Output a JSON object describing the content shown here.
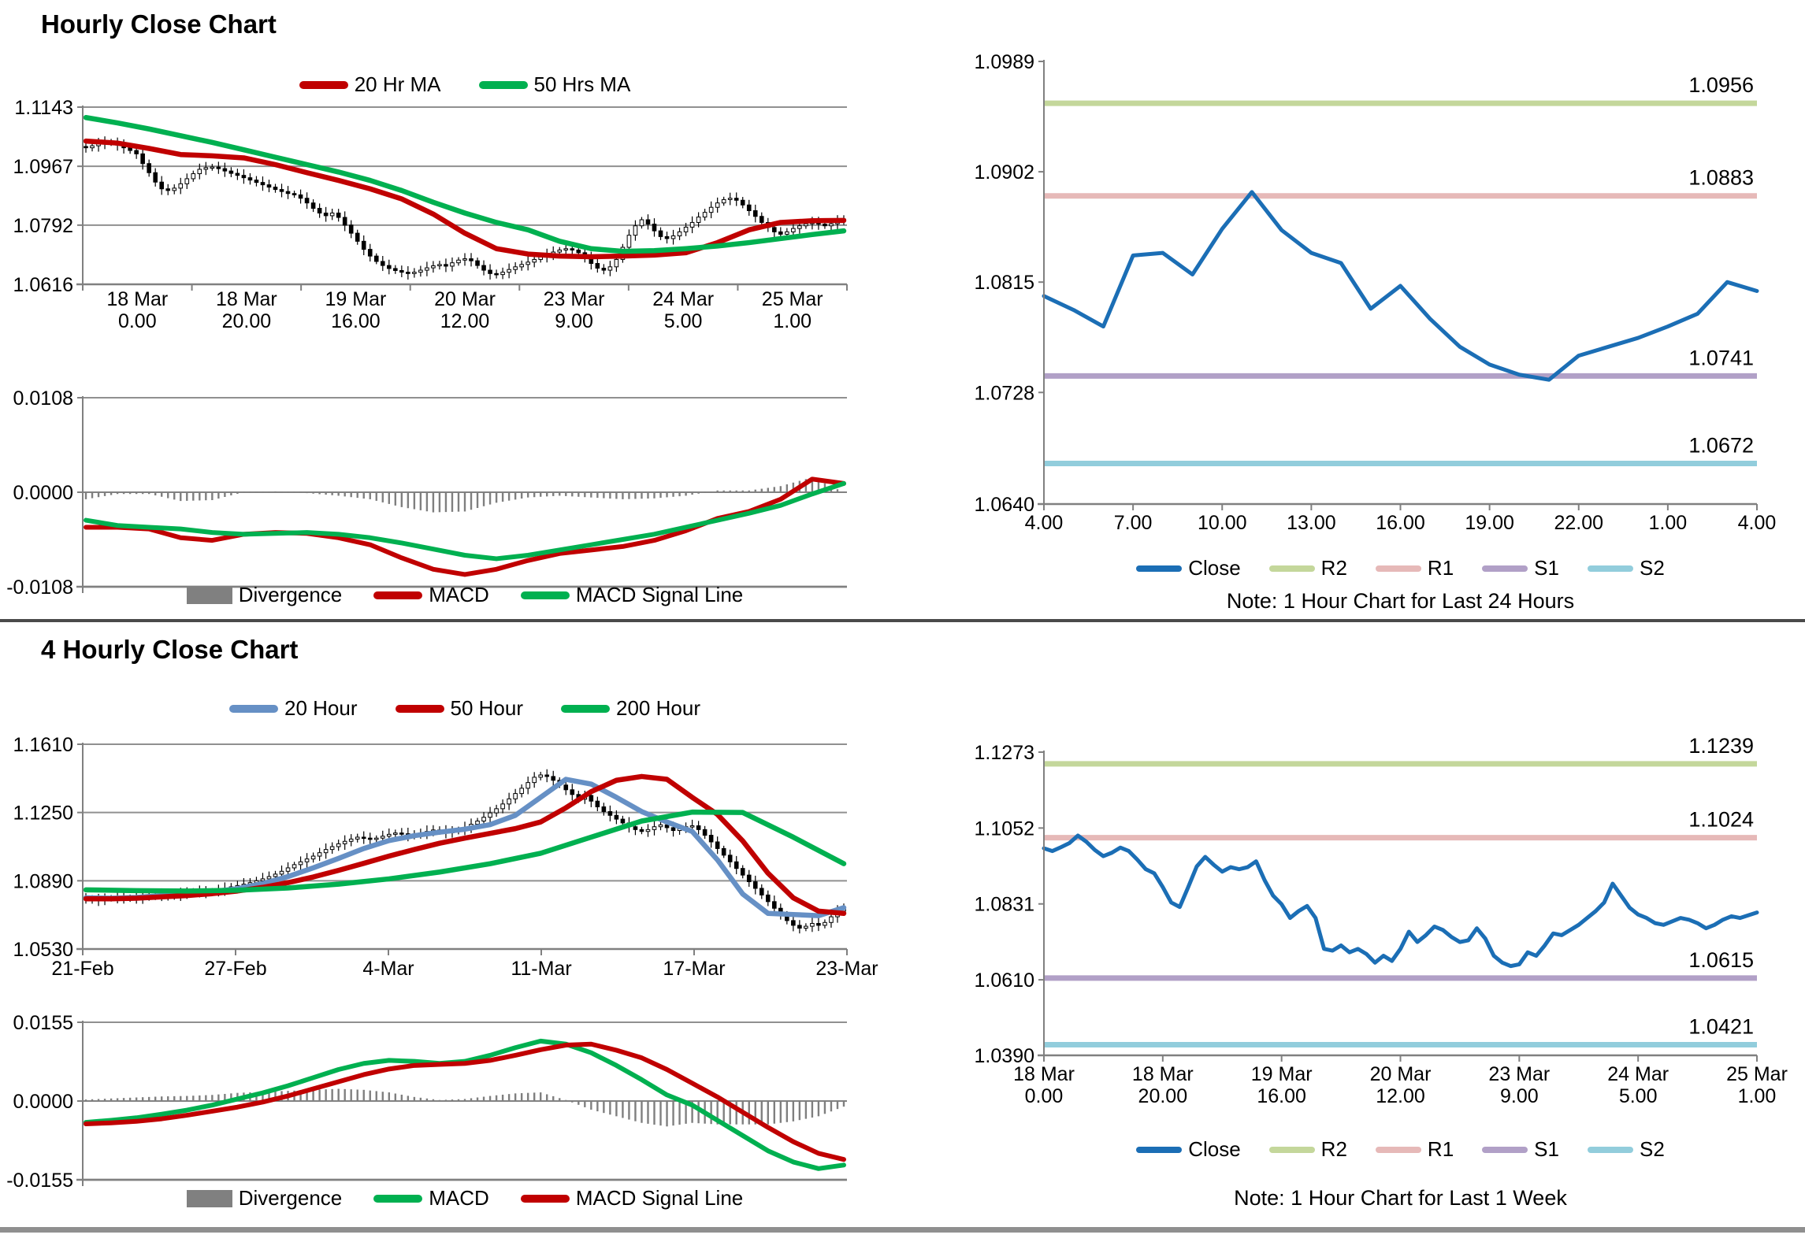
{
  "page": {
    "section1_title": "Hourly Close Chart",
    "section2_title": "4 Hourly Close Chart"
  },
  "colors": {
    "ma_red": "#C00000",
    "ma_green": "#00B050",
    "ma_blue": "#6690C5",
    "close_blue": "#1B6EB5",
    "r2_green": "#C4D79B",
    "r1_pink": "#E6B9B8",
    "s1_purple": "#B1A0C7",
    "s2_cyan": "#92CDDC",
    "divergence_gray": "#808080",
    "grid_gray": "#909090"
  },
  "chart_data": [
    {
      "id": "hourly-price",
      "type": "candlestick",
      "title": "Hourly Close Chart",
      "y_ticks": [
        "1.1143",
        "1.0967",
        "1.0792",
        "1.0616"
      ],
      "x_labels": [
        [
          "18 Mar",
          "0.00"
        ],
        [
          "18 Mar",
          "20.00"
        ],
        [
          "19 Mar",
          "16.00"
        ],
        [
          "20 Mar",
          "12.00"
        ],
        [
          "23 Mar",
          "9.00"
        ],
        [
          "24 Mar",
          "5.00"
        ],
        [
          "25 Mar",
          "1.00"
        ]
      ],
      "close": [
        1.1022,
        1.1028,
        1.1034,
        1.104,
        1.1036,
        1.103,
        1.1022,
        1.1014,
        1.1004,
        1.0975,
        1.0948,
        1.092,
        1.09,
        1.0895,
        1.0902,
        1.0915,
        1.093,
        1.0945,
        1.0958,
        1.0963,
        1.0965,
        1.096,
        1.0953,
        1.0946,
        1.094,
        1.0933,
        1.0926,
        1.0919,
        1.0912,
        1.0905,
        1.0898,
        1.0892,
        1.0886,
        1.0882,
        1.0872,
        1.0858,
        1.0842,
        1.0828,
        1.082,
        1.0828,
        1.0815,
        1.0792,
        1.0768,
        1.0744,
        1.072,
        1.07,
        1.0684,
        1.0672,
        1.0663,
        1.0657,
        1.0652,
        1.0648,
        1.0652,
        1.0658,
        1.0665,
        1.0671,
        1.0675,
        1.067,
        1.068,
        1.0688,
        1.0692,
        1.0686,
        1.0672,
        1.0658,
        1.0648,
        1.0645,
        1.0652,
        1.066,
        1.0668,
        1.0675,
        1.0682,
        1.069,
        1.0698,
        1.0705,
        1.0712,
        1.0718,
        1.0722,
        1.0718,
        1.071,
        1.0695,
        1.0678,
        1.0664,
        1.0658,
        1.0668,
        1.069,
        1.0726,
        1.0762,
        1.079,
        1.0808,
        1.0795,
        1.0775,
        1.0758,
        1.0752,
        1.076,
        1.0772,
        1.0786,
        1.08,
        1.0816,
        1.083,
        1.0845,
        1.0858,
        1.0868,
        1.0872,
        1.0866,
        1.0852,
        1.0835,
        1.0818,
        1.08,
        1.0785,
        1.0772,
        1.0765,
        1.0772,
        1.0782,
        1.079,
        1.0796,
        1.08,
        1.0795,
        1.079,
        1.0796,
        1.0804,
        1.081
      ],
      "series": [
        {
          "name": "20 Hr MA",
          "color": "#C00000",
          "step": 5,
          "values": [
            1.1042,
            1.1036,
            1.102,
            1.1002,
            1.0998,
            1.0992,
            1.0972,
            1.0948,
            1.0925,
            1.09,
            1.087,
            1.0825,
            1.0768,
            1.0722,
            1.0706,
            1.07,
            1.0698,
            1.07,
            1.0703,
            1.071,
            1.074,
            1.0778,
            1.08,
            1.0805,
            1.0806
          ]
        },
        {
          "name": "50 Hrs MA",
          "color": "#00B050",
          "step": 5,
          "values": [
            1.1112,
            1.1096,
            1.1078,
            1.1058,
            1.1038,
            1.1016,
            1.0994,
            1.0972,
            1.095,
            1.0925,
            1.0895,
            1.086,
            1.0828,
            1.08,
            1.0778,
            1.0744,
            1.0722,
            1.0714,
            1.0716,
            1.0722,
            1.073,
            1.074,
            1.0752,
            1.0764,
            1.0775
          ]
        }
      ]
    },
    {
      "id": "hourly-macd",
      "type": "macd",
      "y_ticks": [
        "0.0108",
        "0.0000",
        "-0.0108"
      ],
      "legend": [
        {
          "label": "Divergence",
          "color": "#808080"
        },
        {
          "label": "MACD",
          "color": "#C00000"
        },
        {
          "label": "MACD Signal Line",
          "color": "#00B050"
        }
      ],
      "bars": 121,
      "macd": {
        "color": "#C00000",
        "step": 5,
        "values": [
          -0.004,
          -0.004,
          -0.0042,
          -0.0052,
          -0.0055,
          -0.0048,
          -0.0046,
          -0.0047,
          -0.0052,
          -0.006,
          -0.0075,
          -0.0088,
          -0.0094,
          -0.0088,
          -0.0078,
          -0.007,
          -0.0066,
          -0.0062,
          -0.0055,
          -0.0044,
          -0.003,
          -0.0022,
          -0.0008,
          0.0015,
          0.001
        ]
      },
      "signal": {
        "color": "#00B050",
        "step": 5,
        "values": [
          -0.0032,
          -0.0038,
          -0.004,
          -0.0042,
          -0.0046,
          -0.0048,
          -0.0047,
          -0.0046,
          -0.0048,
          -0.0052,
          -0.0058,
          -0.0065,
          -0.0072,
          -0.0076,
          -0.0072,
          -0.0066,
          -0.006,
          -0.0054,
          -0.0048,
          -0.004,
          -0.0032,
          -0.0024,
          -0.0015,
          -0.0002,
          0.001
        ]
      }
    },
    {
      "id": "hourly-pivot",
      "type": "line",
      "y_ticks": [
        "1.0989",
        "1.0902",
        "1.0815",
        "1.0728",
        "1.0640"
      ],
      "x_labels": [
        "4.00",
        "7.00",
        "10.00",
        "13.00",
        "16.00",
        "19.00",
        "22.00",
        "1.00",
        "4.00"
      ],
      "close_color": "#1B6EB5",
      "close": [
        1.0804,
        1.0793,
        1.078,
        1.0836,
        1.0838,
        1.0821,
        1.0857,
        1.0886,
        1.0856,
        1.0838,
        1.083,
        1.0794,
        1.0812,
        1.0786,
        1.0764,
        1.075,
        1.0742,
        1.0738,
        1.0757,
        1.0764,
        1.0771,
        1.078,
        1.079,
        1.0815,
        1.0808
      ],
      "pivots": [
        {
          "name": "R2",
          "label": "1.0956",
          "value": 1.0956,
          "color": "#C4D79B"
        },
        {
          "name": "R1",
          "label": "1.0883",
          "value": 1.0883,
          "color": "#E6B9B8"
        },
        {
          "name": "S1",
          "label": "1.0741",
          "value": 1.0741,
          "color": "#B1A0C7"
        },
        {
          "name": "S2",
          "label": "1.0672",
          "value": 1.0672,
          "color": "#92CDDC"
        }
      ],
      "legend": [
        {
          "label": "Close",
          "color": "#1B6EB5"
        },
        {
          "label": "R2",
          "color": "#C4D79B"
        },
        {
          "label": "R1",
          "color": "#E6B9B8"
        },
        {
          "label": "S1",
          "color": "#B1A0C7"
        },
        {
          "label": "S2",
          "color": "#92CDDC"
        }
      ],
      "note": "Note: 1 Hour Chart for Last 24 Hours"
    },
    {
      "id": "fourhour-price",
      "type": "candlestick",
      "title": "4 Hourly Close Chart",
      "y_ticks": [
        "1.1610",
        "1.1250",
        "1.0890",
        "1.0530"
      ],
      "x_labels": [
        "21-Feb",
        "27-Feb",
        "4-Mar",
        "11-Mar",
        "17-Mar",
        "23-Mar"
      ],
      "close": [
        1.0795,
        1.0788,
        1.079,
        1.0795,
        1.08,
        1.0805,
        1.08,
        1.0796,
        1.08,
        1.0806,
        1.0812,
        1.0818,
        1.0815,
        1.081,
        1.0815,
        1.0822,
        1.0828,
        1.0835,
        1.0832,
        1.0828,
        1.0835,
        1.0842,
        1.085,
        1.0858,
        1.0865,
        1.0872,
        1.088,
        1.089,
        1.09,
        1.0912,
        1.0925,
        1.094,
        1.0958,
        1.0975,
        1.099,
        1.1005,
        1.102,
        1.1038,
        1.1055,
        1.107,
        1.1085,
        1.1098,
        1.111,
        1.112,
        1.1115,
        1.1108,
        1.1115,
        1.1125,
        1.1135,
        1.1142,
        1.1138,
        1.113,
        1.1135,
        1.1142,
        1.115,
        1.1158,
        1.1152,
        1.1145,
        1.115,
        1.116,
        1.1172,
        1.1188,
        1.1205,
        1.1225,
        1.1248,
        1.127,
        1.1295,
        1.1322,
        1.135,
        1.1378,
        1.1408,
        1.1436,
        1.1448,
        1.144,
        1.142,
        1.1395,
        1.137,
        1.1345,
        1.132,
        1.134,
        1.131,
        1.128,
        1.1255,
        1.1235,
        1.1215,
        1.1195,
        1.1175,
        1.116,
        1.115,
        1.116,
        1.1175,
        1.1185,
        1.117,
        1.1155,
        1.1165,
        1.1175,
        1.118,
        1.116,
        1.113,
        1.1095,
        1.106,
        1.1025,
        1.099,
        1.0955,
        1.092,
        1.0885,
        1.085,
        1.0815,
        1.078,
        1.0745,
        1.071,
        1.068,
        1.0655,
        1.064,
        1.065,
        1.0665,
        1.0655,
        1.067,
        1.07,
        1.073,
        1.075
      ],
      "series": [
        {
          "name": "20 Hour",
          "color": "#6690C5",
          "step": 4,
          "values": [
            1.08,
            1.0798,
            1.0802,
            1.0812,
            1.0822,
            1.0833,
            1.0848,
            1.0875,
            1.0912,
            1.0958,
            1.1008,
            1.106,
            1.1102,
            1.1128,
            1.1146,
            1.1162,
            1.1186,
            1.1235,
            1.133,
            1.1425,
            1.14,
            1.133,
            1.1255,
            1.12,
            1.115,
            1.1,
            1.082,
            1.0718,
            1.0712,
            1.0706,
            1.0748
          ]
        },
        {
          "name": "50 Hour",
          "color": "#C00000",
          "step": 4,
          "values": [
            1.0795,
            1.0795,
            1.0798,
            1.0805,
            1.0812,
            1.0822,
            1.0836,
            1.0855,
            1.088,
            1.091,
            1.0945,
            1.0982,
            1.102,
            1.1055,
            1.1088,
            1.1115,
            1.114,
            1.1165,
            1.12,
            1.1275,
            1.136,
            1.142,
            1.144,
            1.1425,
            1.133,
            1.124,
            1.11,
            1.093,
            1.08,
            1.073,
            1.0718
          ]
        },
        {
          "name": "200 Hour",
          "color": "#00B050",
          "step": 8,
          "values": [
            1.0842,
            1.0838,
            1.0836,
            1.084,
            1.0852,
            1.0872,
            1.09,
            1.0936,
            1.098,
            1.1035,
            1.112,
            1.1205,
            1.1252,
            1.125,
            1.112,
            1.098
          ]
        }
      ]
    },
    {
      "id": "fourhour-macd",
      "type": "macd",
      "y_ticks": [
        "0.0155",
        "0.0000",
        "-0.0155"
      ],
      "legend": [
        {
          "label": "Divergence",
          "color": "#808080"
        },
        {
          "label": "MACD",
          "color": "#00B050"
        },
        {
          "label": "MACD Signal Line",
          "color": "#C00000"
        }
      ],
      "bars": 121,
      "macd": {
        "color": "#00B050",
        "step": 4,
        "values": [
          -0.0042,
          -0.0038,
          -0.0033,
          -0.0026,
          -0.0018,
          -0.0008,
          0.0004,
          0.0016,
          0.003,
          0.0046,
          0.0062,
          0.0074,
          0.008,
          0.0078,
          0.0074,
          0.0078,
          0.009,
          0.0105,
          0.0118,
          0.0112,
          0.0095,
          0.007,
          0.0042,
          0.0012,
          -0.0008,
          -0.0038,
          -0.0068,
          -0.0098,
          -0.012,
          -0.0133,
          -0.0126
        ]
      },
      "signal": {
        "color": "#C00000",
        "step": 4,
        "values": [
          -0.0045,
          -0.0043,
          -0.004,
          -0.0035,
          -0.0028,
          -0.002,
          -0.0012,
          -0.0002,
          0.001,
          0.0024,
          0.0038,
          0.0052,
          0.0063,
          0.007,
          0.0072,
          0.0074,
          0.008,
          0.009,
          0.0101,
          0.011,
          0.0112,
          0.01,
          0.0085,
          0.0062,
          0.0035,
          0.0008,
          -0.0022,
          -0.0052,
          -0.008,
          -0.0103,
          -0.0115
        ]
      }
    },
    {
      "id": "fourhour-pivot",
      "type": "line",
      "y_ticks": [
        "1.1273",
        "1.1052",
        "1.0831",
        "1.0610",
        "1.0390"
      ],
      "x_labels": [
        [
          "18 Mar",
          "0.00"
        ],
        [
          "18 Mar",
          "20.00"
        ],
        [
          "19 Mar",
          "16.00"
        ],
        [
          "20 Mar",
          "12.00"
        ],
        [
          "23 Mar",
          "9.00"
        ],
        [
          "24 Mar",
          "5.00"
        ],
        [
          "25 Mar",
          "1.00"
        ]
      ],
      "close_color": "#1B6EB5",
      "close": [
        1.0993,
        1.0985,
        1.0996,
        1.1008,
        1.103,
        1.1012,
        1.0988,
        1.097,
        1.098,
        1.0995,
        1.0985,
        1.096,
        1.0932,
        1.092,
        1.088,
        1.0835,
        1.0822,
        1.088,
        1.094,
        1.0968,
        1.0945,
        1.0925,
        1.0938,
        1.0932,
        1.0938,
        1.0955,
        1.09,
        1.0855,
        1.083,
        1.079,
        1.081,
        1.0825,
        1.079,
        1.07,
        1.0695,
        1.071,
        1.069,
        1.07,
        1.0685,
        1.066,
        1.068,
        1.0665,
        1.07,
        1.075,
        1.072,
        1.074,
        1.0765,
        1.0755,
        1.0735,
        1.072,
        1.0725,
        1.076,
        1.073,
        1.068,
        1.066,
        1.065,
        1.0655,
        1.069,
        1.068,
        1.071,
        1.0745,
        1.074,
        1.0755,
        1.077,
        1.079,
        1.081,
        1.0835,
        1.089,
        1.0855,
        1.082,
        1.08,
        1.079,
        1.0775,
        1.077,
        1.078,
        1.079,
        1.0785,
        1.0775,
        1.076,
        1.077,
        1.0785,
        1.0795,
        1.079,
        1.0798,
        1.0806
      ],
      "pivots": [
        {
          "name": "R2",
          "label": "1.1239",
          "value": 1.1239,
          "color": "#C4D79B"
        },
        {
          "name": "R1",
          "label": "1.1024",
          "value": 1.1024,
          "color": "#E6B9B8"
        },
        {
          "name": "S1",
          "label": "1.0615",
          "value": 1.0615,
          "color": "#B1A0C7"
        },
        {
          "name": "S2",
          "label": "1.0421",
          "value": 1.0421,
          "color": "#92CDDC"
        }
      ],
      "legend": [
        {
          "label": "Close",
          "color": "#1B6EB5"
        },
        {
          "label": "R2",
          "color": "#C4D79B"
        },
        {
          "label": "R1",
          "color": "#E6B9B8"
        },
        {
          "label": "S1",
          "color": "#B1A0C7"
        },
        {
          "label": "S2",
          "color": "#92CDDC"
        }
      ],
      "note": "Note: 1 Hour Chart for Last 1 Week"
    }
  ]
}
